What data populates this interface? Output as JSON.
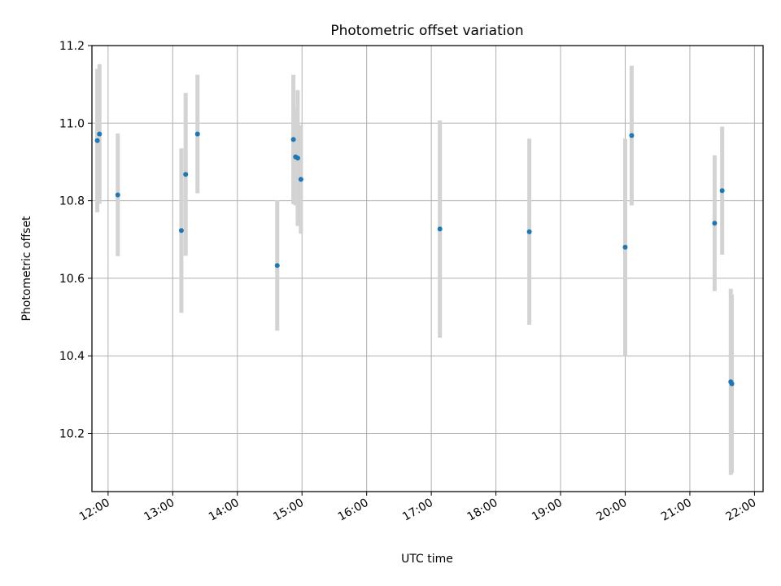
{
  "chart_data": {
    "type": "scatter",
    "title": "Photometric offset variation",
    "xlabel": "UTC time",
    "ylabel": "Photometric offset",
    "xlim": [
      "11:45",
      "22:08"
    ],
    "ylim": [
      10.05,
      11.2
    ],
    "xticks": [
      "12:00",
      "13:00",
      "14:00",
      "15:00",
      "16:00",
      "17:00",
      "18:00",
      "19:00",
      "20:00",
      "21:00",
      "22:00"
    ],
    "yticks": [
      "10.2",
      "10.4",
      "10.6",
      "10.8",
      "11.0",
      "11.2"
    ],
    "grid": true,
    "errorbar_color": "#d3d3d3",
    "marker_color": "#1f77b4",
    "points": [
      {
        "t": "11:50",
        "y": 10.955,
        "err": 0.185
      },
      {
        "t": "11:52",
        "y": 10.972,
        "err": 0.18
      },
      {
        "t": "12:09",
        "y": 10.815,
        "err": 0.158
      },
      {
        "t": "13:08",
        "y": 10.723,
        "err": 0.212
      },
      {
        "t": "13:12",
        "y": 10.868,
        "err": 0.21
      },
      {
        "t": "13:23",
        "y": 10.972,
        "err": 0.153
      },
      {
        "t": "14:37",
        "y": 10.633,
        "err": 0.168
      },
      {
        "t": "14:52",
        "y": 10.958,
        "err": 0.167
      },
      {
        "t": "14:54",
        "y": 10.913,
        "err": 0.125
      },
      {
        "t": "14:56",
        "y": 10.91,
        "err": 0.175
      },
      {
        "t": "14:59",
        "y": 10.855,
        "err": 0.14
      },
      {
        "t": "17:08",
        "y": 10.727,
        "err": 0.28
      },
      {
        "t": "18:31",
        "y": 10.72,
        "err": 0.24
      },
      {
        "t": "20:00",
        "y": 10.68,
        "err": 0.28
      },
      {
        "t": "20:06",
        "y": 10.968,
        "err": 0.18
      },
      {
        "t": "21:23",
        "y": 10.742,
        "err": 0.175
      },
      {
        "t": "21:30",
        "y": 10.826,
        "err": 0.165
      },
      {
        "t": "21:38",
        "y": 10.333,
        "err": 0.24
      },
      {
        "t": "21:39",
        "y": 10.328,
        "err": 0.23
      }
    ]
  }
}
